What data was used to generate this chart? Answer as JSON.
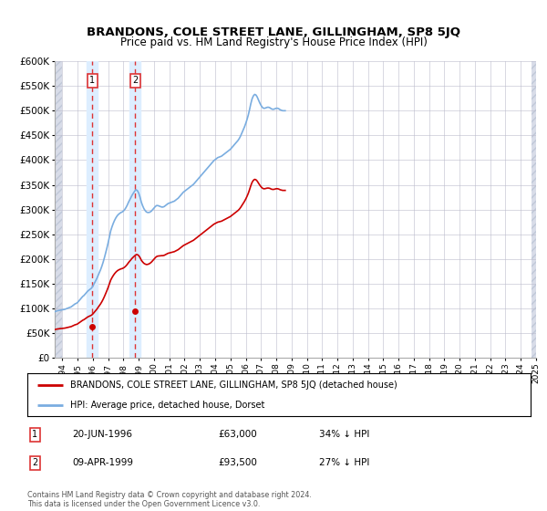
{
  "title": "BRANDONS, COLE STREET LANE, GILLINGHAM, SP8 5JQ",
  "subtitle": "Price paid vs. HM Land Registry's House Price Index (HPI)",
  "legend_line1": "BRANDONS, COLE STREET LANE, GILLINGHAM, SP8 5JQ (detached house)",
  "legend_line2": "HPI: Average price, detached house, Dorset",
  "footnote": "Contains HM Land Registry data © Crown copyright and database right 2024.\nThis data is licensed under the Open Government Licence v3.0.",
  "sale_points": [
    {
      "label": "1",
      "date_str": "20-JUN-1996",
      "year": 1996.46,
      "price": 63000
    },
    {
      "label": "2",
      "date_str": "09-APR-1999",
      "year": 1999.27,
      "price": 93500
    }
  ],
  "table_rows": [
    {
      "num": "1",
      "date": "20-JUN-1996",
      "price": "£63,000",
      "hpi": "34% ↓ HPI"
    },
    {
      "num": "2",
      "date": "09-APR-1999",
      "price": "£93,500",
      "hpi": "27% ↓ HPI"
    }
  ],
  "ylim": [
    0,
    600000
  ],
  "xlim_min": 1994.0,
  "xlim_max": 2025.5,
  "hpi_color": "#7aade0",
  "price_color": "#cc0000",
  "vline_color": "#dd3333",
  "span_color": "#ddeeff",
  "grid_color": "#bbbbcc",
  "hatch_color": "#d8dce8",
  "sale_point_color": "#cc0000",
  "hpi_values": [
    93000,
    94000,
    95000,
    95500,
    96000,
    96500,
    97000,
    97500,
    98000,
    99000,
    100000,
    101000,
    102000,
    103000,
    105000,
    107000,
    109000,
    110000,
    112000,
    115000,
    118000,
    121000,
    124000,
    126000,
    129000,
    132000,
    135000,
    137000,
    139000,
    141000,
    145000,
    150000,
    155000,
    160000,
    166000,
    172000,
    178000,
    185000,
    193000,
    202000,
    212000,
    222000,
    233000,
    245000,
    257000,
    265000,
    272000,
    278000,
    283000,
    287000,
    290000,
    292000,
    294000,
    295000,
    297000,
    300000,
    304000,
    309000,
    315000,
    320000,
    325000,
    330000,
    334000,
    338000,
    340000,
    338000,
    333000,
    325000,
    315000,
    308000,
    302000,
    298000,
    295000,
    294000,
    294000,
    295000,
    297000,
    300000,
    303000,
    306000,
    308000,
    308000,
    307000,
    306000,
    305000,
    305000,
    306000,
    308000,
    310000,
    312000,
    313000,
    314000,
    315000,
    316000,
    317000,
    319000,
    321000,
    323000,
    326000,
    329000,
    332000,
    335000,
    337000,
    339000,
    341000,
    343000,
    345000,
    347000,
    349000,
    351000,
    354000,
    357000,
    360000,
    363000,
    366000,
    369000,
    372000,
    375000,
    378000,
    381000,
    384000,
    387000,
    390000,
    393000,
    396000,
    399000,
    401000,
    403000,
    405000,
    406000,
    407000,
    408000,
    410000,
    412000,
    414000,
    416000,
    418000,
    420000,
    422000,
    425000,
    428000,
    431000,
    434000,
    437000,
    440000,
    444000,
    449000,
    455000,
    461000,
    467000,
    474000,
    482000,
    491000,
    502000,
    514000,
    524000,
    530000,
    533000,
    532000,
    528000,
    522000,
    516000,
    511000,
    507000,
    505000,
    505000,
    506000,
    507000,
    507000,
    506000,
    504000,
    503000,
    503000,
    504000,
    505000,
    505000,
    504000,
    502000,
    501000,
    500000,
    500000,
    500000
  ],
  "years_hpi_start": 1994.0,
  "years_hpi_step": 0.08333,
  "red_ratio_early": 0.6117,
  "red_ratio_late": 0.6774,
  "red_transition_start": 1999.27,
  "red_transition_end": 2001.0
}
